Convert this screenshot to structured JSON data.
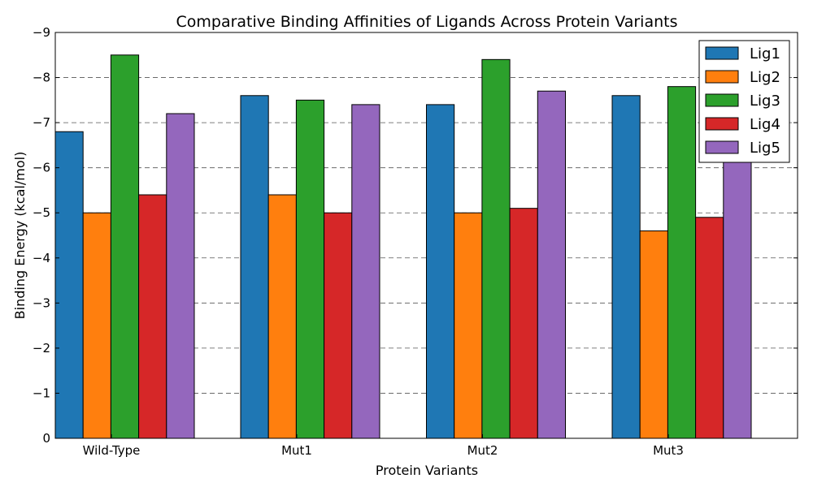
{
  "chart_data": {
    "type": "bar",
    "title": "Comparative Binding Affinities of Ligands Across Protein Variants",
    "xlabel": "Protein Variants",
    "ylabel": "Binding Energy (kcal/mol)",
    "categories": [
      "Wild-Type",
      "Mut1",
      "Mut2",
      "Mut3"
    ],
    "series": [
      {
        "name": "Lig1",
        "color": "#1f77b4",
        "values": [
          -6.8,
          -7.6,
          -7.4,
          -7.6
        ]
      },
      {
        "name": "Lig2",
        "color": "#ff7f0e",
        "values": [
          -5.0,
          -5.4,
          -5.0,
          -4.6
        ]
      },
      {
        "name": "Lig3",
        "color": "#2ca02c",
        "values": [
          -8.5,
          -7.5,
          -8.4,
          -7.8
        ]
      },
      {
        "name": "Lig4",
        "color": "#d62728",
        "values": [
          -5.4,
          -5.0,
          -5.1,
          -4.9
        ]
      },
      {
        "name": "Lig5",
        "color": "#9467bd",
        "values": [
          -7.2,
          -7.4,
          -7.7,
          -7.4
        ]
      }
    ],
    "ylim": [
      0,
      -9
    ],
    "y_axis_inverted": true,
    "yticks": [
      0,
      -1,
      -2,
      -3,
      -4,
      -5,
      -6,
      -7,
      -8,
      -9
    ],
    "ytick_labels": [
      "0",
      "−1",
      "−2",
      "−3",
      "−4",
      "−5",
      "−6",
      "−7",
      "−8",
      "−9"
    ],
    "grid": "horizontal dashed",
    "legend_position": "top-right"
  }
}
